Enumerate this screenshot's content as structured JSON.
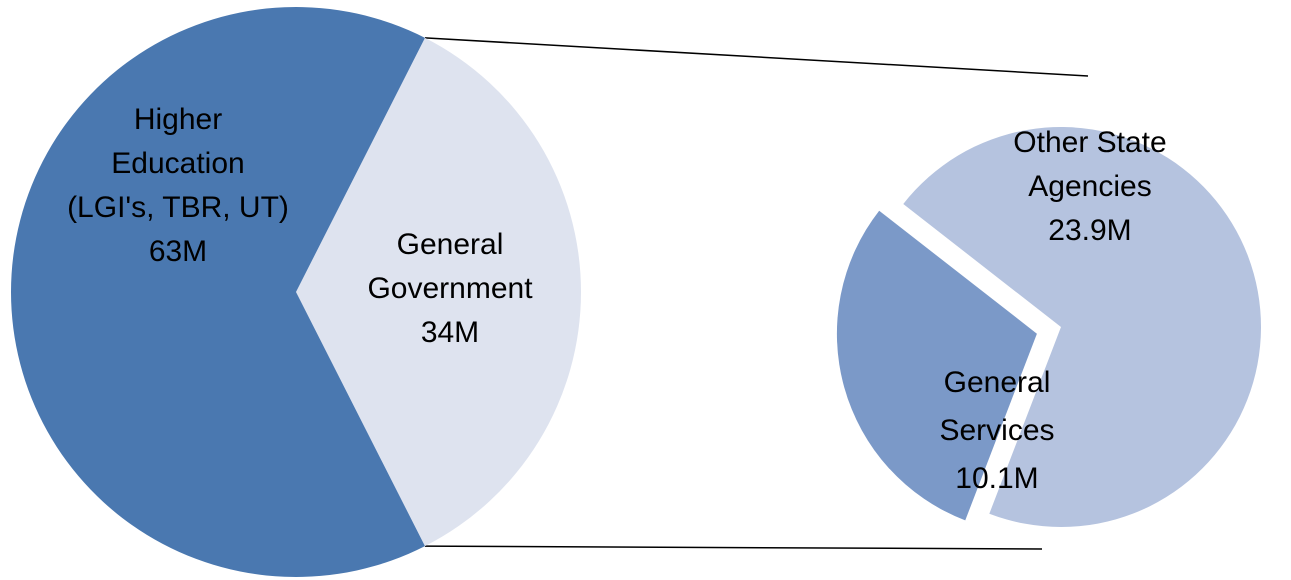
{
  "chart_data": [
    {
      "type": "pie",
      "slices": [
        {
          "label_lines": [
            "Higher",
            "Education",
            "(LGI's, TBR, UT)",
            "63M"
          ],
          "value": 63,
          "color": "#4a78b0"
        },
        {
          "label_lines": [
            "General",
            "Government",
            "34M"
          ],
          "value": 34,
          "color": "#dee3ef"
        }
      ]
    },
    {
      "type": "pie",
      "slices": [
        {
          "label_lines": [
            "Other State",
            "Agencies",
            "23.9M"
          ],
          "value": 23.9,
          "color": "#b5c3df"
        },
        {
          "label_lines": [
            "General",
            "Services",
            "10.1M"
          ],
          "value": 10.1,
          "color": "#7b99c8"
        }
      ]
    }
  ]
}
